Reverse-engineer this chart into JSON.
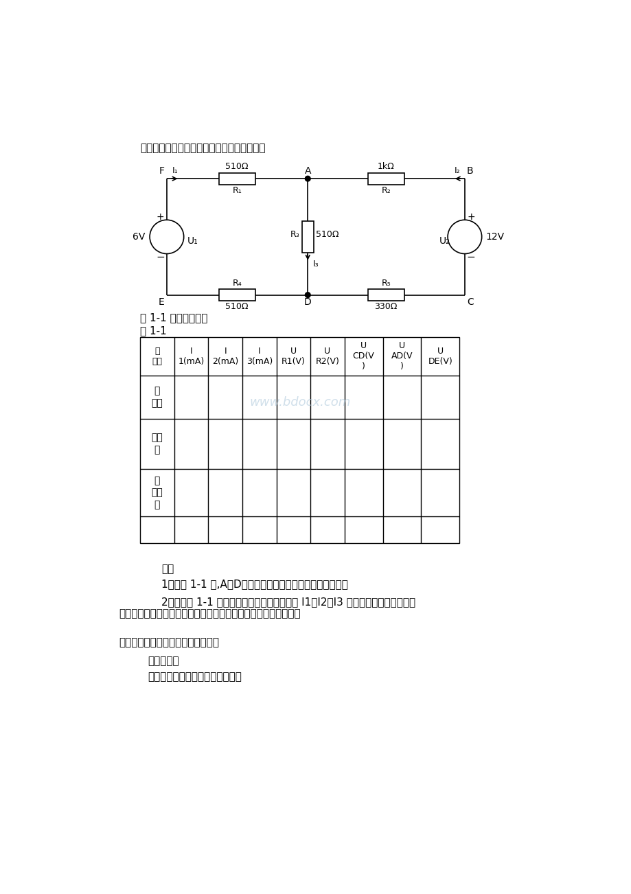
{
  "bg_color": "#ffffff",
  "page_width": 9.2,
  "page_height": 13.02,
  "note_text": "注意：要求每次只能用一只万用表进行测量。",
  "fig_caption": "图 1-1 实验一电路图",
  "table_caption": "表 1-1",
  "think_title": "思考",
  "think_1": "1、在图 1-1 中,A、D两结点的电流方程是否相同？为什么？",
  "think_2_line1": "2、根据图 1-1 的电路参数，估出待测的电流 I1、I2、I3 和各电阻上的电压值，记",
  "think_2_line2": "入表中，以便实验测量时，可正确地选定毫安表和电压表的量限。",
  "exp2_title": "实验二、晶体二极管和三极管的检测",
  "exp2_goal_label": "实验目的：",
  "exp2_goal_content": "掌握二极管和三极管的检测方法；",
  "watermark": "www.bdocx.com",
  "header_row0_col0": "待\n测量",
  "header_row0_col1": "I\n1(mA)",
  "header_row0_col2": "I\n2(mA)",
  "header_row0_col3": "I\n3(mA)",
  "header_row0_col4": "U\nR1(V)",
  "header_row0_col5": "U\nR2(V)",
  "header_row0_col6": "U\nCD(V\n)",
  "header_row0_col7": "U\nAD(V\n)",
  "header_row0_col8": "U\nDE(V)",
  "row_label_1": "计\n算值",
  "row_label_2": "测量\n值",
  "row_label_3": "相\n对误\n差",
  "row_label_4": ""
}
